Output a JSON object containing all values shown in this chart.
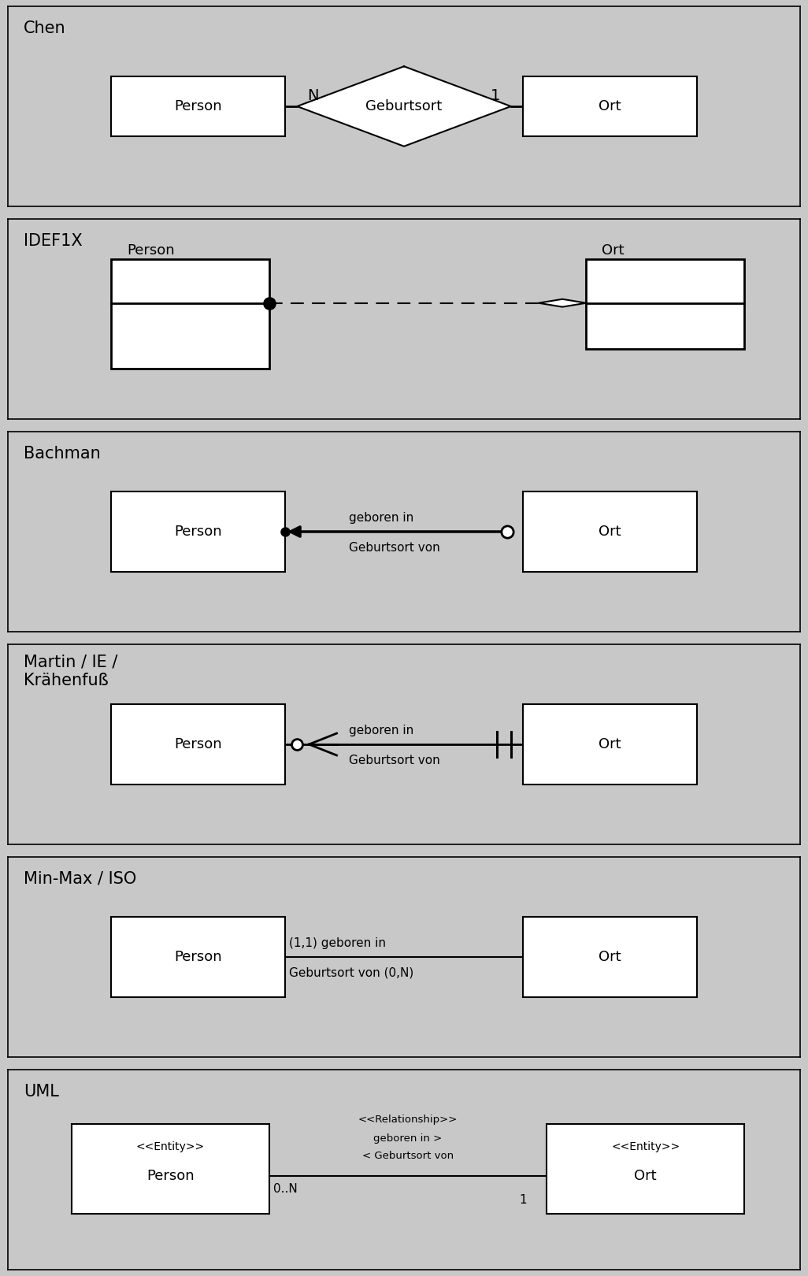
{
  "bg_color": "#c8c8c8",
  "box_fill": "#ffffff",
  "box_edge": "#000000",
  "title_fontsize": 15,
  "label_fontsize": 13,
  "small_fontsize": 11,
  "sections": [
    {
      "title": "Chen"
    },
    {
      "title": "IDEF1X"
    },
    {
      "title": "Bachman"
    },
    {
      "title": "Martin / IE /\nKrähenfuß"
    },
    {
      "title": "Min-Max / ISO"
    },
    {
      "title": "UML"
    }
  ]
}
